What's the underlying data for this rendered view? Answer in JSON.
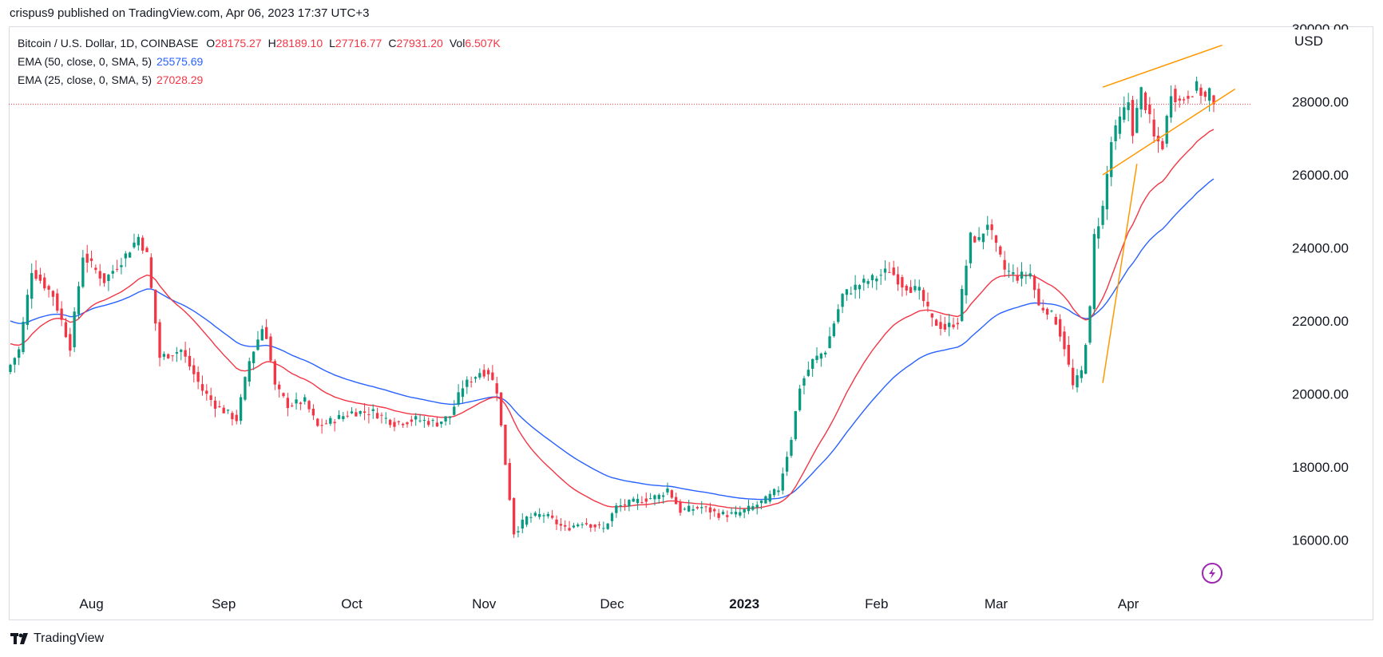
{
  "header": {
    "publisher_line": "crispus9 published on TradingView.com, Apr 06, 2023 17:37 UTC+3"
  },
  "legend": {
    "symbol": "Bitcoin / U.S. Dollar, 1D, COINBASE",
    "ohlc": [
      {
        "key": "O",
        "value": "28175.27"
      },
      {
        "key": "H",
        "value": "28189.10"
      },
      {
        "key": "L",
        "value": "27716.77"
      },
      {
        "key": "C",
        "value": "27931.20"
      },
      {
        "key": "Vol",
        "value": "6.507K"
      }
    ],
    "ema50": {
      "label": "EMA (50, close, 0, SMA, 5)",
      "value": "25575.69"
    },
    "ema25": {
      "label": "EMA (25, close, 0, SMA, 5)",
      "value": "27028.29"
    }
  },
  "currency": "USD",
  "brand": "TradingView",
  "colors": {
    "up": "#089981",
    "down": "#f23645",
    "ema50": "#2962ff",
    "ema25": "#f23645",
    "trendline": "#ff9800",
    "price_line": "#f23645",
    "replay_icon": "#9c27b0"
  },
  "icons": {
    "replay": "lightning-icon",
    "brand_logo": "tradingview-logo-icon"
  },
  "chart_data": {
    "type": "candlestick",
    "symbol": "BTCUSD",
    "interval": "1D",
    "ylim": [
      14500,
      30000
    ],
    "y_ticks": [
      16000,
      18000,
      20000,
      22000,
      24000,
      26000,
      28000
    ],
    "y_tick_labels": [
      "16000.00",
      "18000.00",
      "20000.00",
      "22000.00",
      "24000.00",
      "26000.00",
      "28000.00"
    ],
    "y_tick_partial": {
      "value": 30000,
      "label": "30000.00"
    },
    "x_tick_labels": [
      {
        "label": "Aug",
        "index": 19,
        "bold": false
      },
      {
        "label": "Sep",
        "index": 50,
        "bold": false
      },
      {
        "label": "Oct",
        "index": 80,
        "bold": false
      },
      {
        "label": "Nov",
        "index": 111,
        "bold": false
      },
      {
        "label": "Dec",
        "index": 141,
        "bold": false
      },
      {
        "label": "2023",
        "index": 172,
        "bold": true
      },
      {
        "label": "Feb",
        "index": 203,
        "bold": false
      },
      {
        "label": "Mar",
        "index": 231,
        "bold": false
      },
      {
        "label": "Apr",
        "index": 262,
        "bold": false
      }
    ],
    "close_anchors": [
      [
        0,
        20800
      ],
      [
        2,
        21200
      ],
      [
        5,
        23400
      ],
      [
        10,
        22700
      ],
      [
        14,
        21300
      ],
      [
        17,
        23800
      ],
      [
        22,
        23100
      ],
      [
        27,
        23800
      ],
      [
        30,
        24300
      ],
      [
        32,
        23800
      ],
      [
        35,
        21000
      ],
      [
        40,
        21200
      ],
      [
        45,
        20100
      ],
      [
        48,
        19700
      ],
      [
        53,
        19300
      ],
      [
        56,
        20900
      ],
      [
        59,
        21800
      ],
      [
        60,
        21600
      ],
      [
        62,
        20200
      ],
      [
        65,
        19700
      ],
      [
        69,
        19800
      ],
      [
        72,
        19100
      ],
      [
        76,
        19300
      ],
      [
        80,
        19500
      ],
      [
        85,
        19500
      ],
      [
        90,
        19200
      ],
      [
        95,
        19300
      ],
      [
        100,
        19200
      ],
      [
        103,
        19400
      ],
      [
        106,
        20200
      ],
      [
        110,
        20600
      ],
      [
        112,
        20600
      ],
      [
        114,
        20100
      ],
      [
        116,
        18100
      ],
      [
        118,
        16200
      ],
      [
        121,
        16600
      ],
      [
        125,
        16700
      ],
      [
        130,
        16300
      ],
      [
        134,
        16500
      ],
      [
        139,
        16300
      ],
      [
        142,
        16900
      ],
      [
        148,
        17100
      ],
      [
        152,
        17200
      ],
      [
        154,
        17400
      ],
      [
        157,
        16800
      ],
      [
        162,
        16900
      ],
      [
        166,
        16700
      ],
      [
        170,
        16700
      ],
      [
        174,
        16900
      ],
      [
        177,
        17100
      ],
      [
        180,
        17400
      ],
      [
        183,
        18800
      ],
      [
        185,
        20200
      ],
      [
        188,
        20900
      ],
      [
        191,
        21200
      ],
      [
        195,
        22700
      ],
      [
        199,
        23000
      ],
      [
        203,
        23200
      ],
      [
        206,
        23400
      ],
      [
        209,
        23000
      ],
      [
        213,
        22800
      ],
      [
        216,
        22000
      ],
      [
        219,
        21800
      ],
      [
        222,
        22000
      ],
      [
        225,
        24300
      ],
      [
        227,
        24200
      ],
      [
        229,
        24700
      ],
      [
        231,
        24000
      ],
      [
        233,
        23400
      ],
      [
        236,
        23200
      ],
      [
        239,
        23300
      ],
      [
        241,
        22400
      ],
      [
        243,
        22300
      ],
      [
        245,
        22000
      ],
      [
        247,
        21300
      ],
      [
        249,
        20200
      ],
      [
        251,
        20600
      ],
      [
        253,
        22300
      ],
      [
        254,
        24300
      ],
      [
        255,
        24700
      ],
      [
        256,
        25100
      ],
      [
        258,
        26900
      ],
      [
        260,
        27500
      ],
      [
        262,
        28000
      ],
      [
        263,
        27200
      ],
      [
        265,
        28300
      ],
      [
        267,
        27500
      ],
      [
        268,
        27000
      ],
      [
        270,
        26800
      ],
      [
        272,
        28300
      ],
      [
        274,
        28000
      ],
      [
        276,
        28200
      ],
      [
        278,
        28400
      ],
      [
        280,
        28100
      ],
      [
        281,
        28300
      ],
      [
        282,
        27931
      ]
    ],
    "series": [
      {
        "name": "EMA (50, close, 0, SMA, 5)",
        "last_value": 25575.69
      },
      {
        "name": "EMA (25, close, 0, SMA, 5)",
        "last_value": 27028.29
      }
    ],
    "last_price": 27931.2,
    "trendlines": [
      {
        "from": [
          256,
          20300
        ],
        "to": [
          264,
          26300
        ]
      },
      {
        "from": [
          256,
          26000
        ],
        "to": [
          287,
          28350
        ]
      },
      {
        "from": [
          256,
          28400
        ],
        "to": [
          284,
          29550
        ]
      }
    ],
    "grid": false,
    "legend_position": "top-left"
  }
}
